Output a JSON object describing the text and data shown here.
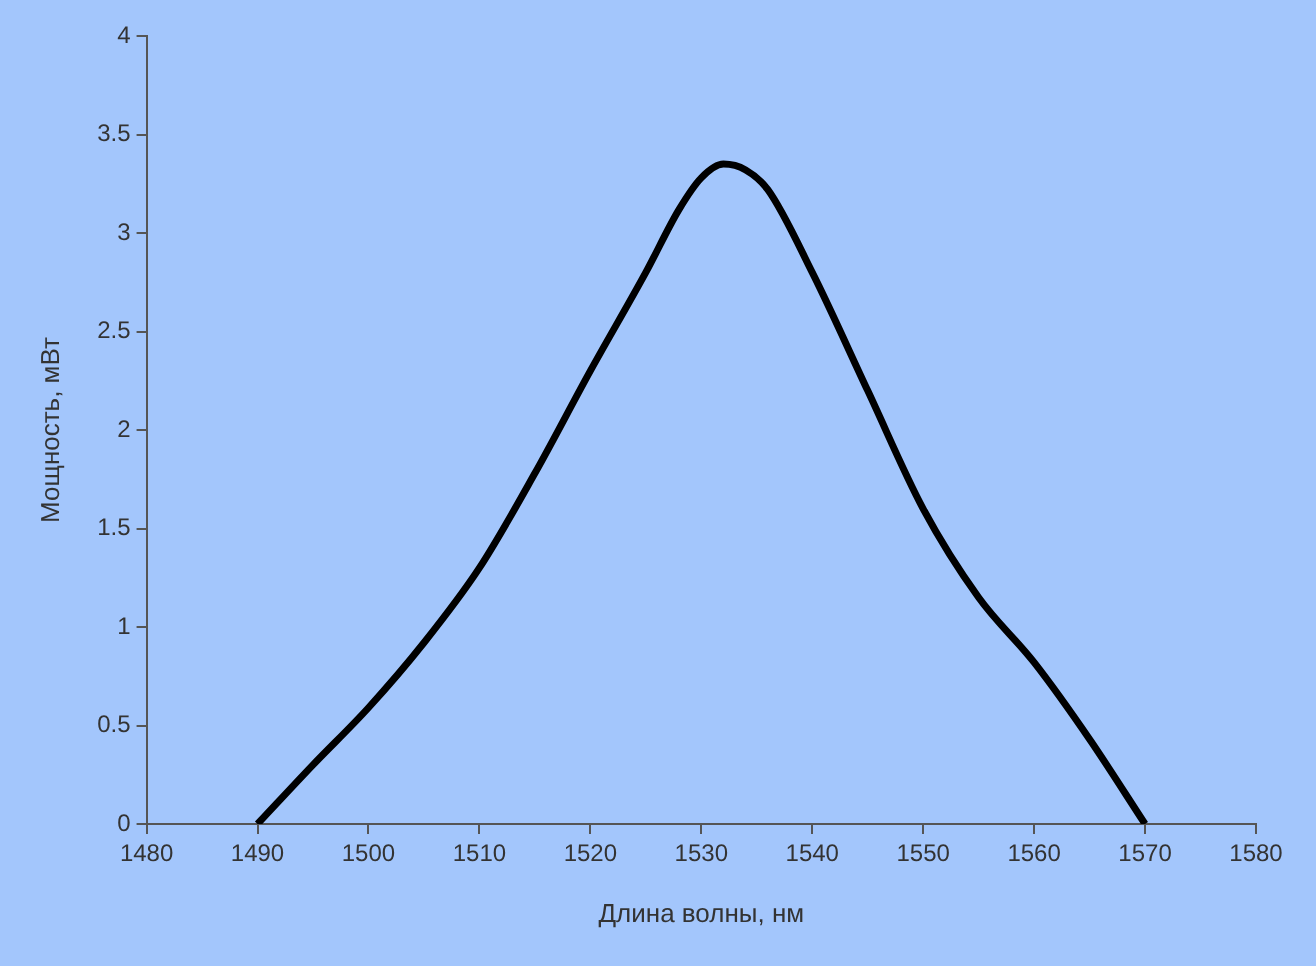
{
  "chart_data": {
    "type": "line",
    "xlabel": "Длина волны, нм",
    "ylabel": "Мощность, мВт",
    "x": [
      1490,
      1495,
      1500,
      1505,
      1510,
      1515,
      1520,
      1525,
      1528,
      1530,
      1532,
      1534,
      1536,
      1540,
      1545,
      1550,
      1555,
      1560,
      1565,
      1570
    ],
    "series": [
      {
        "color": "#000000",
        "values": [
          0,
          0.3,
          0.59,
          0.92,
          1.3,
          1.78,
          2.3,
          2.8,
          3.12,
          3.28,
          3.35,
          3.32,
          3.22,
          2.8,
          2.2,
          1.6,
          1.15,
          0.82,
          0.43,
          0
        ]
      }
    ],
    "xlim": [
      1480,
      1580
    ],
    "xticks": [
      1480,
      1490,
      1500,
      1510,
      1520,
      1530,
      1540,
      1550,
      1560,
      1570,
      1580
    ],
    "ylim": [
      0,
      4
    ],
    "yticks": [
      0,
      0.5,
      1,
      1.5,
      2,
      2.5,
      3,
      3.5,
      4
    ],
    "grid": false,
    "legend": false,
    "marker": "none",
    "line_style": "solid"
  }
}
